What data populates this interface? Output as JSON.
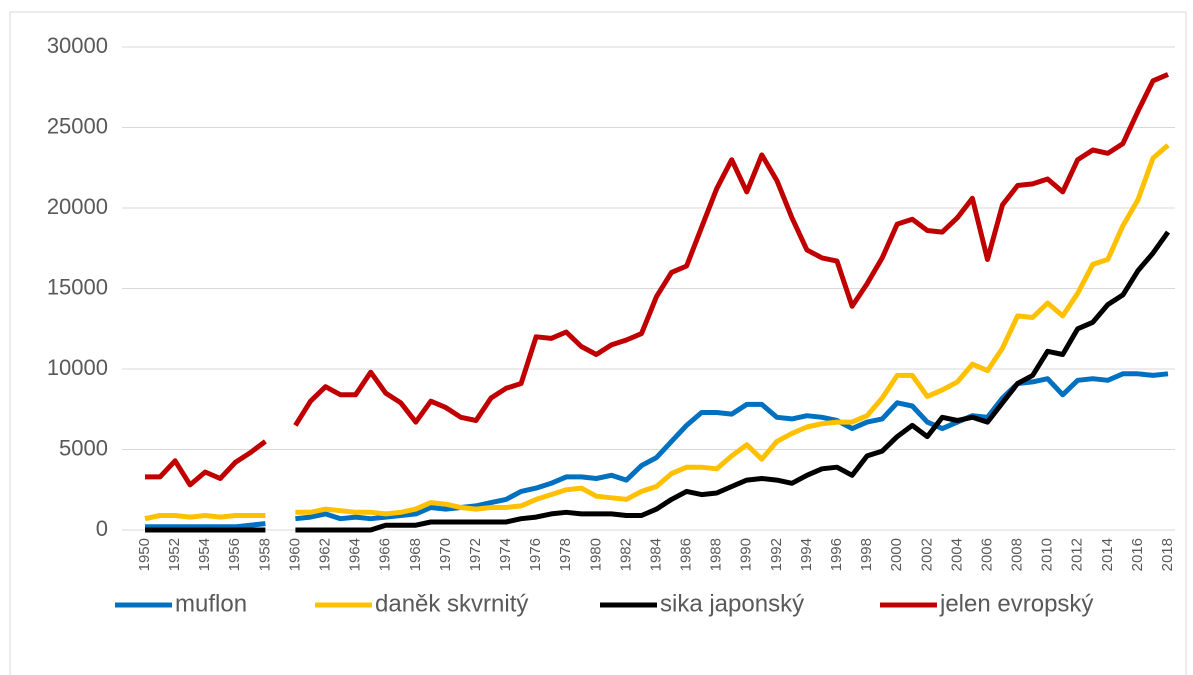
{
  "chart_data": {
    "type": "line",
    "categories": [
      "1950",
      null,
      "1952",
      null,
      "1954",
      null,
      "1956",
      null,
      "1958",
      null,
      "1960",
      null,
      "1962",
      null,
      "1964",
      null,
      "1966",
      null,
      "1968",
      null,
      "1970",
      null,
      "1972",
      null,
      "1974",
      null,
      "1976",
      null,
      "1978",
      null,
      "1980",
      null,
      "1982",
      null,
      "1984",
      null,
      "1986",
      null,
      "1988",
      null,
      "1990",
      null,
      "1992",
      null,
      "1994",
      null,
      "1996",
      null,
      "1998",
      null,
      "2000",
      null,
      "2002",
      null,
      "2004",
      null,
      "2006",
      null,
      "2008",
      null,
      "2010",
      null,
      "2012",
      null,
      "2014",
      null,
      "2016",
      null,
      "2018"
    ],
    "series": [
      {
        "name": "muflon",
        "color": "#0070c0",
        "values": [
          200,
          200,
          200,
          200,
          200,
          200,
          200,
          300,
          400,
          null,
          700,
          800,
          1000,
          700,
          800,
          700,
          800,
          900,
          1000,
          1400,
          1300,
          1400,
          1500,
          1700,
          1900,
          2400,
          2600,
          2900,
          3300,
          3300,
          3200,
          3400,
          3100,
          4000,
          4500,
          5500,
          6500,
          7300,
          7300,
          7200,
          7800,
          7800,
          7000,
          6900,
          7100,
          7000,
          6800,
          6300,
          6700,
          6900,
          7900,
          7700,
          6700,
          6300,
          6700,
          7100,
          7000,
          8200,
          9100,
          9200,
          9400,
          8400,
          9300,
          9400,
          9300,
          9700,
          9700,
          9600,
          9700
        ]
      },
      {
        "name": "daněk skvrnitý",
        "color": "#ffc000",
        "values": [
          700,
          900,
          900,
          800,
          900,
          800,
          900,
          900,
          900,
          null,
          1100,
          1100,
          1300,
          1200,
          1100,
          1100,
          1000,
          1100,
          1300,
          1700,
          1600,
          1400,
          1300,
          1400,
          1400,
          1500,
          1900,
          2200,
          2500,
          2600,
          2100,
          2000,
          1900,
          2400,
          2700,
          3500,
          3900,
          3900,
          3800,
          4600,
          5300,
          4400,
          5500,
          6000,
          6400,
          6600,
          6700,
          6700,
          7100,
          8200,
          9600,
          9600,
          8300,
          8700,
          9200,
          10300,
          9900,
          11300,
          13300,
          13200,
          14100,
          13300,
          14700,
          16500,
          16800,
          18900,
          20500,
          23100,
          23900
        ]
      },
      {
        "name": "sika japonský",
        "color": "#000000",
        "values": [
          0,
          0,
          0,
          0,
          0,
          0,
          0,
          0,
          0,
          null,
          0,
          0,
          0,
          0,
          0,
          0,
          300,
          300,
          300,
          500,
          500,
          500,
          500,
          500,
          500,
          700,
          800,
          1000,
          1100,
          1000,
          1000,
          1000,
          900,
          900,
          1300,
          1900,
          2400,
          2200,
          2300,
          2700,
          3100,
          3200,
          3100,
          2900,
          3400,
          3800,
          3900,
          3400,
          4600,
          4900,
          5800,
          6500,
          5800,
          7000,
          6800,
          7000,
          6700,
          7900,
          9100,
          9600,
          11100,
          10900,
          12500,
          12900,
          14000,
          14600,
          16100,
          17200,
          18500
        ]
      },
      {
        "name": "jelen evropský",
        "color": "#c00000",
        "values": [
          3300,
          3300,
          4300,
          2800,
          3600,
          3200,
          4200,
          4800,
          5500,
          null,
          6500,
          8000,
          8900,
          8400,
          8400,
          9800,
          8500,
          7900,
          6700,
          8000,
          7600,
          7000,
          6800,
          8200,
          8800,
          9100,
          12000,
          11900,
          12300,
          11400,
          10900,
          11500,
          11800,
          12200,
          14500,
          16000,
          16400,
          18800,
          21200,
          23000,
          21000,
          23300,
          21700,
          19400,
          17400,
          16900,
          16700,
          13900,
          15300,
          16900,
          19000,
          19300,
          18600,
          18500,
          19400,
          20600,
          16800,
          20200,
          21400,
          21500,
          21800,
          21000,
          23000,
          23600,
          23400,
          24000,
          26000,
          27900,
          28300
        ]
      }
    ],
    "ylim": [
      0,
      30000
    ],
    "yticks": [
      0,
      5000,
      10000,
      15000,
      20000,
      25000,
      30000
    ],
    "grid": true,
    "legend": "bottom"
  }
}
